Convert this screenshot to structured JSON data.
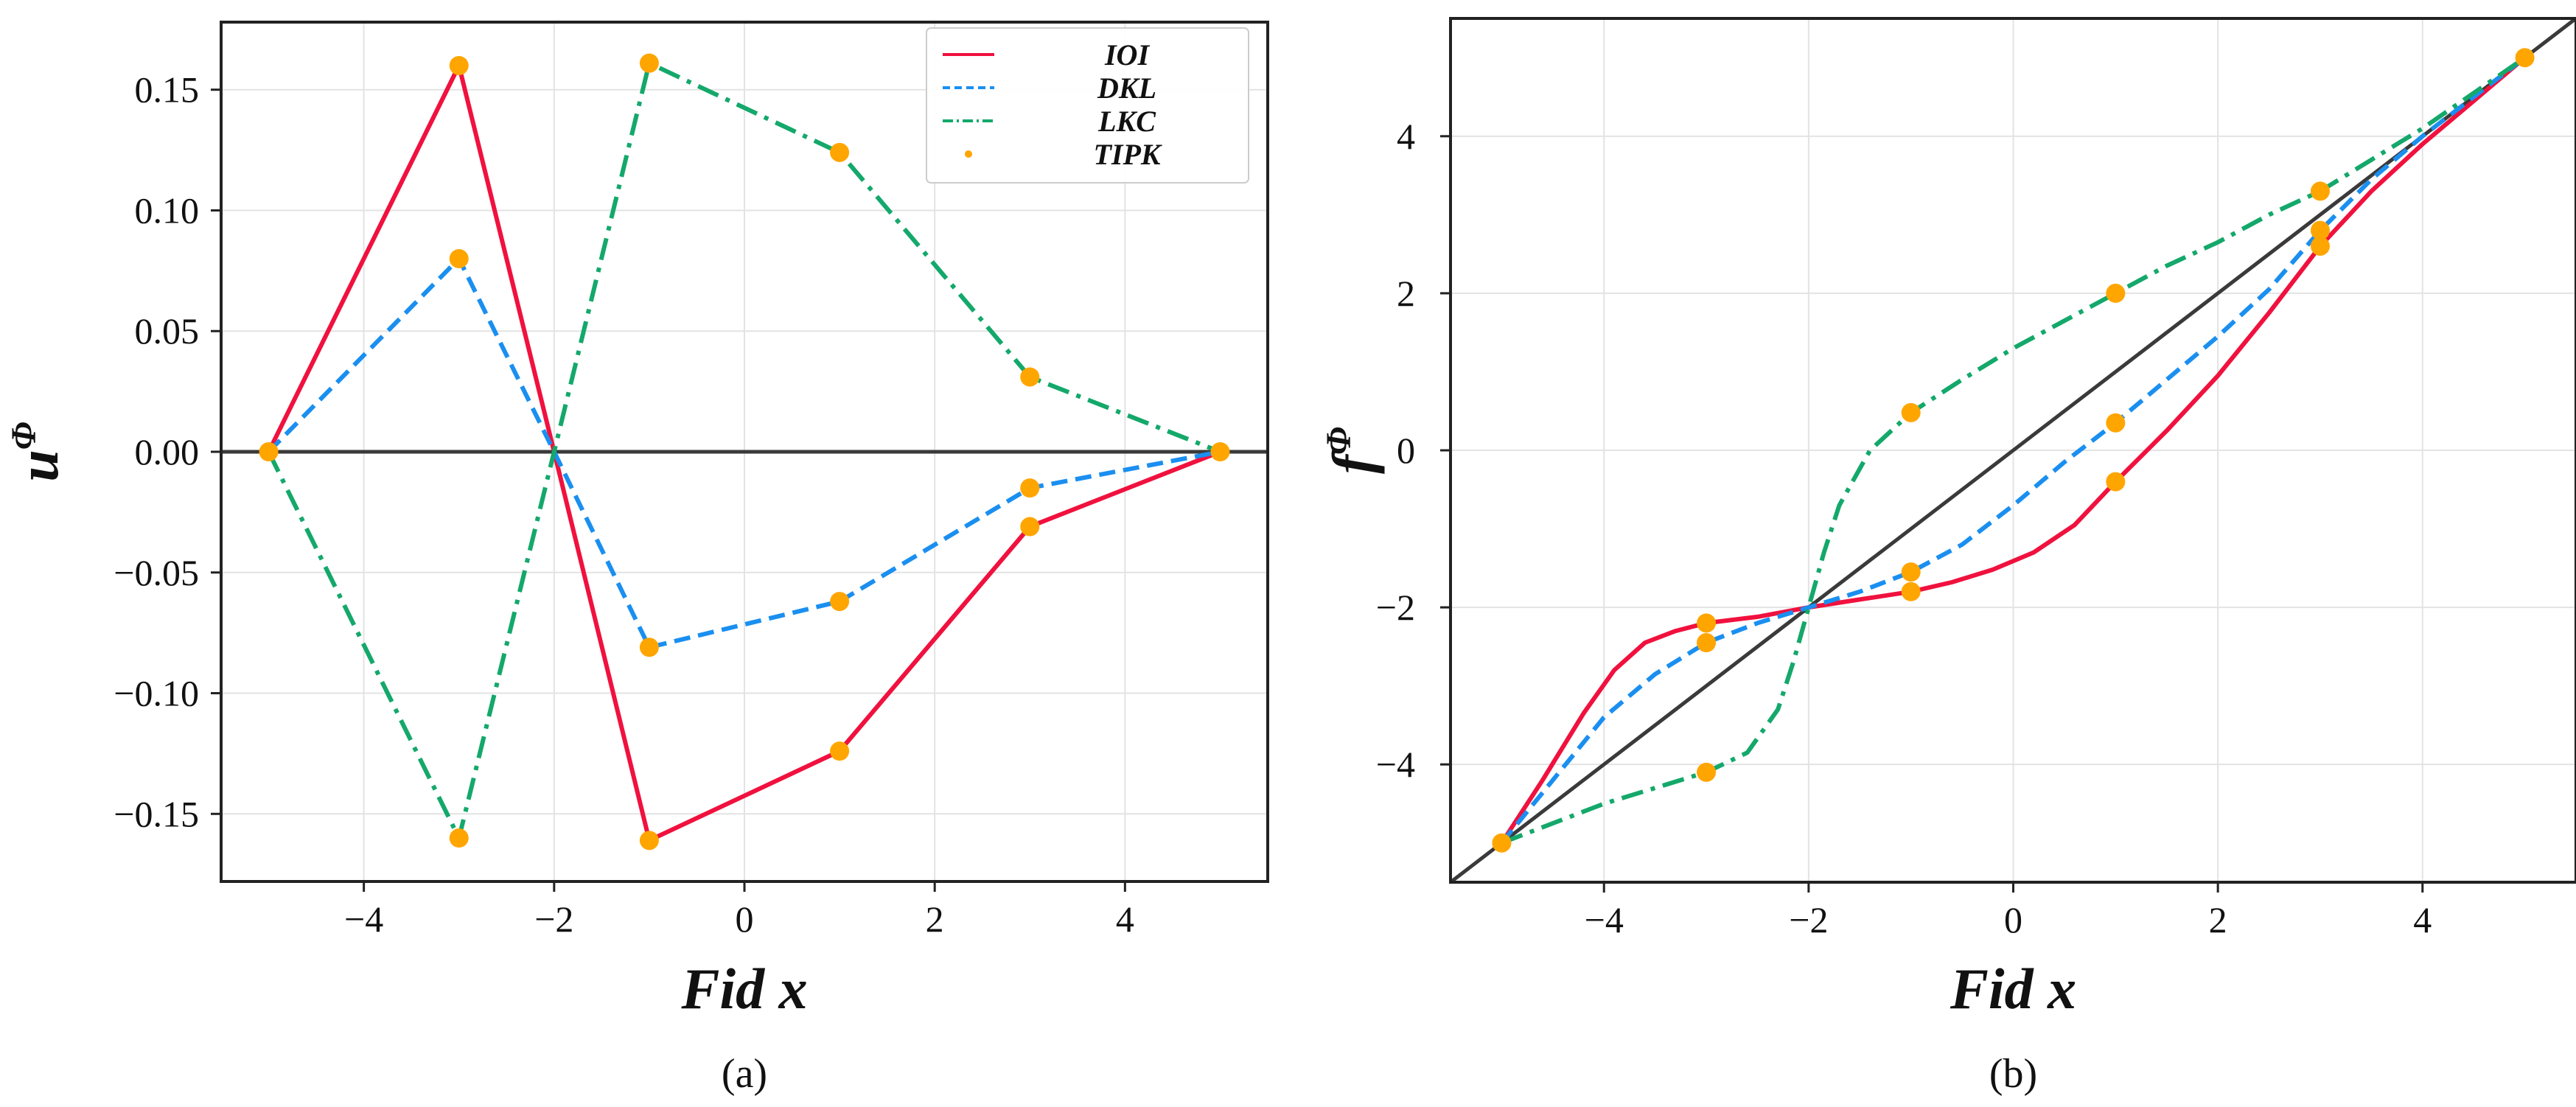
{
  "chart_data": [
    {
      "type": "line",
      "panel": "a",
      "panel_label": "(a)",
      "xlabel": "Fid x",
      "ylabel": "u",
      "ylabel_superscript": "Φ",
      "xlim": [
        -5.5,
        5.5
      ],
      "ylim": [
        -0.178,
        0.178
      ],
      "xticks": [
        -4,
        -2,
        0,
        2,
        4
      ],
      "xtick_labels": [
        "−4",
        "−2",
        "0",
        "2",
        "4"
      ],
      "yticks": [
        -0.15,
        -0.1,
        -0.05,
        0.0,
        0.05,
        0.1,
        0.15
      ],
      "ytick_labels": [
        "−0.15",
        "−0.10",
        "−0.05",
        "0.00",
        "0.05",
        "0.10",
        "0.15"
      ],
      "grid": true,
      "legend_position": "top-right",
      "reference_line": {
        "x": [
          -5.5,
          5.5
        ],
        "y": [
          0,
          0
        ],
        "color": "#3a3a3a"
      },
      "series": [
        {
          "name": "IOI",
          "style": "solid",
          "color": "#f0113e",
          "x": [
            -5,
            -3,
            -2,
            -1,
            1,
            3,
            5
          ],
          "y": [
            0,
            0.16,
            0,
            -0.161,
            -0.124,
            -0.031,
            0
          ]
        },
        {
          "name": "DKL",
          "style": "dashed",
          "color": "#1a8ff0",
          "x": [
            -5,
            -3,
            -2,
            -1,
            1,
            3,
            5
          ],
          "y": [
            0,
            0.08,
            0,
            -0.081,
            -0.062,
            -0.015,
            0
          ]
        },
        {
          "name": "LKC",
          "style": "dashdot",
          "color": "#14a86b",
          "x": [
            -5,
            -3,
            -2,
            -1,
            1,
            3,
            5
          ],
          "y": [
            0,
            -0.16,
            0,
            0.161,
            0.124,
            0.031,
            0
          ]
        }
      ],
      "markers": {
        "name": "TIPK",
        "color": "#ffa500",
        "points": [
          [
            -5,
            0
          ],
          [
            -3,
            0.16
          ],
          [
            -3,
            0.08
          ],
          [
            -3,
            -0.16
          ],
          [
            -1,
            0.161
          ],
          [
            -1,
            -0.081
          ],
          [
            -1,
            -0.161
          ],
          [
            1,
            0.124
          ],
          [
            1,
            -0.062
          ],
          [
            1,
            -0.124
          ],
          [
            3,
            0.031
          ],
          [
            3,
            -0.015
          ],
          [
            3,
            -0.031
          ],
          [
            5,
            0
          ]
        ]
      }
    },
    {
      "type": "line",
      "panel": "b",
      "panel_label": "(b)",
      "xlabel": "Fid x",
      "ylabel": "f",
      "ylabel_superscript": "Φ",
      "xlim": [
        -5.5,
        5.5
      ],
      "ylim": [
        -5.5,
        5.5
      ],
      "xticks": [
        -4,
        -2,
        0,
        2,
        4
      ],
      "xtick_labels": [
        "−4",
        "−2",
        "0",
        "2",
        "4"
      ],
      "yticks": [
        -4,
        -2,
        0,
        2,
        4
      ],
      "ytick_labels": [
        "−4",
        "−2",
        "0",
        "2",
        "4"
      ],
      "grid": true,
      "reference_line": {
        "x": [
          -5.5,
          5.5
        ],
        "y": [
          -5.5,
          5.5
        ],
        "color": "#3a3a3a"
      },
      "series": [
        {
          "name": "IOI",
          "style": "solid",
          "color": "#f0113e",
          "x": [
            -5,
            -4.6,
            -4.2,
            -3.9,
            -3.6,
            -3.3,
            -3,
            -2.5,
            -2,
            -1.5,
            -1,
            -0.6,
            -0.2,
            0.2,
            0.6,
            1,
            1.5,
            2,
            2.5,
            3,
            3.5,
            4,
            4.5,
            5
          ],
          "y": [
            -5,
            -4.2,
            -3.35,
            -2.8,
            -2.45,
            -2.3,
            -2.2,
            -2.12,
            -2.0,
            -1.9,
            -1.8,
            -1.68,
            -1.52,
            -1.3,
            -0.95,
            -0.4,
            0.25,
            0.95,
            1.75,
            2.6,
            3.3,
            3.9,
            4.45,
            5
          ]
        },
        {
          "name": "DKL",
          "style": "dashed",
          "color": "#1a8ff0",
          "x": [
            -5,
            -4.5,
            -4,
            -3.5,
            -3,
            -2.5,
            -2,
            -1.5,
            -1,
            -0.5,
            0,
            0.5,
            1,
            1.5,
            2,
            2.5,
            3,
            3.5,
            4,
            4.5,
            5
          ],
          "y": [
            -5,
            -4.2,
            -3.4,
            -2.85,
            -2.45,
            -2.2,
            -2.0,
            -1.8,
            -1.55,
            -1.2,
            -0.7,
            -0.15,
            0.35,
            0.9,
            1.45,
            2.05,
            2.8,
            3.45,
            4.0,
            4.5,
            5
          ]
        },
        {
          "name": "LKC",
          "style": "dashdot",
          "color": "#14a86b",
          "x": [
            -5,
            -4.5,
            -4,
            -3.5,
            -3,
            -2.6,
            -2.3,
            -2.15,
            -2,
            -1.85,
            -1.7,
            -1.4,
            -1,
            -0.5,
            0,
            0.5,
            1,
            1.5,
            2,
            2.5,
            3,
            3.5,
            4,
            4.5,
            5
          ],
          "y": [
            -5,
            -4.75,
            -4.5,
            -4.3,
            -4.1,
            -3.85,
            -3.3,
            -2.7,
            -2.0,
            -1.3,
            -0.7,
            0.0,
            0.48,
            0.9,
            1.3,
            1.65,
            2.0,
            2.35,
            2.65,
            3.0,
            3.3,
            3.7,
            4.1,
            4.55,
            5
          ]
        }
      ],
      "markers": {
        "name": "TIPK",
        "color": "#ffa500",
        "points": [
          [
            -5,
            -5
          ],
          [
            -3,
            -2.2
          ],
          [
            -3,
            -2.45
          ],
          [
            -3,
            -4.1
          ],
          [
            -1,
            -1.55
          ],
          [
            -1,
            -1.8
          ],
          [
            -1,
            0.48
          ],
          [
            1,
            2.0
          ],
          [
            1,
            0.35
          ],
          [
            1,
            -0.4
          ],
          [
            3,
            3.3
          ],
          [
            3,
            2.8
          ],
          [
            3,
            2.6
          ],
          [
            5,
            5
          ]
        ]
      }
    }
  ]
}
